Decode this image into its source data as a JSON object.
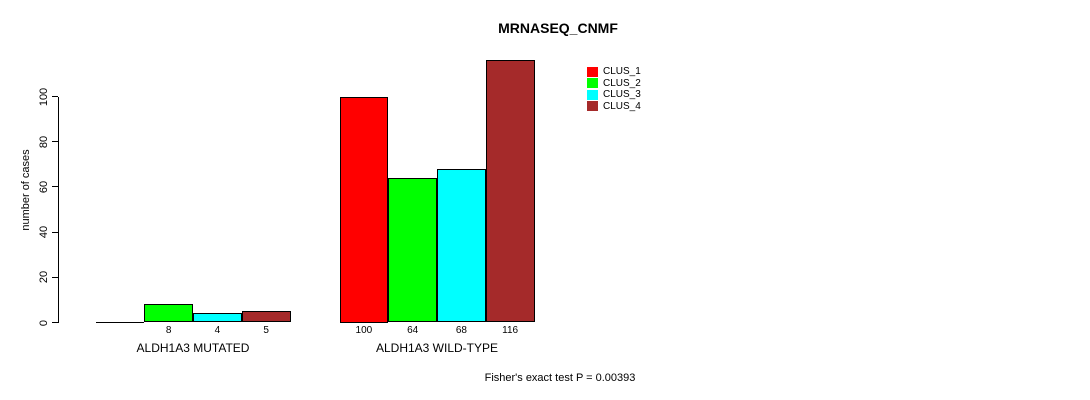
{
  "chart_data": {
    "type": "bar",
    "title": "MRNASEQ_CNMF",
    "ylabel": "number of cases",
    "xlabel": "",
    "categories": [
      "ALDH1A3 MUTATED",
      "ALDH1A3 WILD-TYPE"
    ],
    "series": [
      {
        "name": "CLUS_1",
        "color": "#FF0000",
        "values": [
          0,
          100
        ]
      },
      {
        "name": "CLUS_2",
        "color": "#00FF00",
        "values": [
          8,
          64
        ]
      },
      {
        "name": "CLUS_3",
        "color": "#00FFFF",
        "values": [
          4,
          68
        ]
      },
      {
        "name": "CLUS_4",
        "color": "#A52A2A",
        "values": [
          5,
          116
        ]
      }
    ],
    "bar_value_labels": [
      [
        "",
        "8",
        "4",
        "5"
      ],
      [
        "100",
        "64",
        "68",
        "116"
      ]
    ],
    "yticks": [
      0,
      20,
      40,
      60,
      80,
      100
    ],
    "ylim": [
      0,
      100
    ],
    "grid": false,
    "legend": {
      "position": "top-right",
      "entries": [
        "CLUS_1",
        "CLUS_2",
        "CLUS_3",
        "CLUS_4"
      ]
    },
    "annotation": "Fisher's exact test P = 0.00393"
  }
}
